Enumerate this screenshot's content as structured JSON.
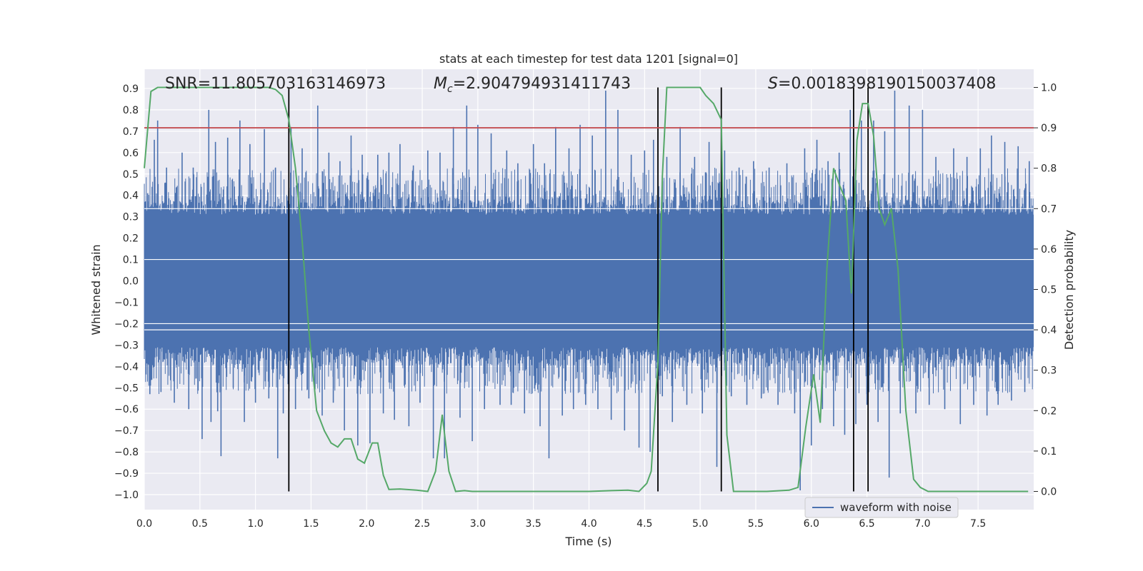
{
  "chart_data": {
    "type": "line",
    "title": "stats at each timestep for test data 1201 [signal=0]",
    "xlabel": "Time (s)",
    "ylabel_left": "Whitened strain",
    "ylabel_right": "Detection probability",
    "xlim": [
      0.0,
      8.0
    ],
    "ylim_left": [
      -1.07,
      0.99
    ],
    "ylim_right": [
      -0.045,
      1.045
    ],
    "x_ticks": [
      0.0,
      0.5,
      1.0,
      1.5,
      2.0,
      2.5,
      3.0,
      3.5,
      4.0,
      4.5,
      5.0,
      5.5,
      6.0,
      6.5,
      7.0,
      7.5
    ],
    "x_tick_labels": [
      "0.0",
      "0.5",
      "1.0",
      "1.5",
      "2.0",
      "2.5",
      "3.0",
      "3.5",
      "4.0",
      "4.5",
      "5.0",
      "5.5",
      "6.0",
      "6.5",
      "7.0",
      "7.5"
    ],
    "y_left_ticks": [
      0.9,
      0.8,
      0.7,
      0.6,
      0.5,
      0.4,
      0.3,
      0.2,
      0.1,
      0.0,
      -0.1,
      -0.2,
      -0.3,
      -0.4,
      -0.5,
      -0.6,
      -0.7,
      -0.8,
      -0.9,
      -1.0
    ],
    "y_left_tick_labels": [
      "0.9",
      "0.8",
      "0.7",
      "0.6",
      "0.5",
      "0.4",
      "0.3",
      "0.2",
      "0.1",
      "0.0",
      "−0.1",
      "−0.2",
      "−0.3",
      "−0.4",
      "−0.5",
      "−0.6",
      "−0.7",
      "−0.8",
      "−0.9",
      "−1.0"
    ],
    "y_right_ticks": [
      1.0,
      0.9,
      0.8,
      0.7,
      0.6,
      0.5,
      0.4,
      0.3,
      0.2,
      0.1,
      0.0
    ],
    "y_right_tick_labels": [
      "1.0",
      "0.9",
      "0.8",
      "0.7",
      "0.6",
      "0.5",
      "0.4",
      "0.3",
      "0.2",
      "0.1",
      "0.0"
    ],
    "annotations": {
      "snr": "SNR=11.805703163146973",
      "mc_symbol": "M",
      "mc_subscript": "c",
      "mc_value": "=2.904794931411743",
      "s_symbol": "S",
      "s_value": "=0.0018398190150037408"
    },
    "threshold": {
      "value": 0.9,
      "axis": "right",
      "color": "#c44e52"
    },
    "vertical_lines_x": [
      1.3,
      4.62,
      5.19,
      6.38,
      6.51
    ],
    "waveform": {
      "name": "waveform with noise",
      "color": "#4c72b0",
      "x_range": [
        0.0,
        8.0
      ],
      "description": "dense noise",
      "body_amplitude": 0.31,
      "spikes": [
        {
          "x": 0.03,
          "y": 0.41
        },
        {
          "x": 0.05,
          "y": -0.53
        },
        {
          "x": 0.09,
          "y": 0.66
        },
        {
          "x": 0.12,
          "y": 0.75
        },
        {
          "x": 0.15,
          "y": -0.52
        },
        {
          "x": 0.2,
          "y": 0.53
        },
        {
          "x": 0.27,
          "y": -0.57
        },
        {
          "x": 0.34,
          "y": 0.6
        },
        {
          "x": 0.4,
          "y": -0.6
        },
        {
          "x": 0.44,
          "y": 0.53
        },
        {
          "x": 0.52,
          "y": -0.74
        },
        {
          "x": 0.58,
          "y": 0.8
        },
        {
          "x": 0.6,
          "y": -0.66
        },
        {
          "x": 0.64,
          "y": 0.65
        },
        {
          "x": 0.66,
          "y": -0.61
        },
        {
          "x": 0.69,
          "y": -0.82
        },
        {
          "x": 0.75,
          "y": 0.67
        },
        {
          "x": 0.8,
          "y": -0.5
        },
        {
          "x": 0.86,
          "y": 0.75
        },
        {
          "x": 0.9,
          "y": -0.66
        },
        {
          "x": 0.95,
          "y": 0.64
        },
        {
          "x": 1.0,
          "y": -0.57
        },
        {
          "x": 1.08,
          "y": 0.71
        },
        {
          "x": 1.12,
          "y": -0.55
        },
        {
          "x": 1.18,
          "y": 0.53
        },
        {
          "x": 1.2,
          "y": -0.83
        },
        {
          "x": 1.25,
          "y": -0.62
        },
        {
          "x": 1.32,
          "y": 0.72
        },
        {
          "x": 1.36,
          "y": -0.6
        },
        {
          "x": 1.42,
          "y": 0.62
        },
        {
          "x": 1.48,
          "y": -0.55
        },
        {
          "x": 1.56,
          "y": 0.82
        },
        {
          "x": 1.6,
          "y": -0.63
        },
        {
          "x": 1.66,
          "y": 0.6
        },
        {
          "x": 1.7,
          "y": -0.57
        },
        {
          "x": 1.76,
          "y": 0.56
        },
        {
          "x": 1.8,
          "y": -0.7
        },
        {
          "x": 1.86,
          "y": 0.68
        },
        {
          "x": 1.92,
          "y": -0.77
        },
        {
          "x": 1.96,
          "y": 0.59
        },
        {
          "x": 2.03,
          "y": -0.76
        },
        {
          "x": 2.1,
          "y": 0.59
        },
        {
          "x": 2.15,
          "y": -0.62
        },
        {
          "x": 2.2,
          "y": 0.6
        },
        {
          "x": 2.25,
          "y": -0.65
        },
        {
          "x": 2.3,
          "y": 0.64
        },
        {
          "x": 2.38,
          "y": -0.68
        },
        {
          "x": 2.42,
          "y": 0.54
        },
        {
          "x": 2.48,
          "y": -0.57
        },
        {
          "x": 2.55,
          "y": 0.61
        },
        {
          "x": 2.6,
          "y": -0.83
        },
        {
          "x": 2.66,
          "y": 0.6
        },
        {
          "x": 2.7,
          "y": -0.83
        },
        {
          "x": 2.78,
          "y": 0.72
        },
        {
          "x": 2.84,
          "y": -0.64
        },
        {
          "x": 2.9,
          "y": 0.82
        },
        {
          "x": 2.95,
          "y": -0.75
        },
        {
          "x": 3.0,
          "y": 0.73
        },
        {
          "x": 3.06,
          "y": -0.6
        },
        {
          "x": 3.12,
          "y": 0.69
        },
        {
          "x": 3.2,
          "y": -0.58
        },
        {
          "x": 3.26,
          "y": 0.61
        },
        {
          "x": 3.3,
          "y": -0.58
        },
        {
          "x": 3.36,
          "y": 0.55
        },
        {
          "x": 3.42,
          "y": -0.62
        },
        {
          "x": 3.5,
          "y": 0.64
        },
        {
          "x": 3.56,
          "y": -0.68
        },
        {
          "x": 3.6,
          "y": 0.55
        },
        {
          "x": 3.64,
          "y": -0.83
        },
        {
          "x": 3.7,
          "y": 0.72
        },
        {
          "x": 3.76,
          "y": -0.63
        },
        {
          "x": 3.82,
          "y": 0.62
        },
        {
          "x": 3.86,
          "y": -0.6
        },
        {
          "x": 3.92,
          "y": 0.73
        },
        {
          "x": 3.97,
          "y": -0.58
        },
        {
          "x": 4.03,
          "y": 0.68
        },
        {
          "x": 4.08,
          "y": -0.6
        },
        {
          "x": 4.15,
          "y": 0.89
        },
        {
          "x": 4.2,
          "y": -0.65
        },
        {
          "x": 4.26,
          "y": 0.8
        },
        {
          "x": 4.32,
          "y": -0.7
        },
        {
          "x": 4.38,
          "y": 0.59
        },
        {
          "x": 4.45,
          "y": -0.78
        },
        {
          "x": 4.5,
          "y": 0.61
        },
        {
          "x": 4.55,
          "y": -0.8
        },
        {
          "x": 4.58,
          "y": 0.66
        },
        {
          "x": 4.66,
          "y": -0.54
        },
        {
          "x": 4.7,
          "y": 0.58
        },
        {
          "x": 4.75,
          "y": -0.66
        },
        {
          "x": 4.82,
          "y": 0.72
        },
        {
          "x": 4.88,
          "y": -0.58
        },
        {
          "x": 4.95,
          "y": 0.58
        },
        {
          "x": 5.02,
          "y": -0.62
        },
        {
          "x": 5.08,
          "y": 0.65
        },
        {
          "x": 5.15,
          "y": -0.87
        },
        {
          "x": 5.22,
          "y": 0.61
        },
        {
          "x": 5.28,
          "y": -0.54
        },
        {
          "x": 5.35,
          "y": 0.53
        },
        {
          "x": 5.42,
          "y": -0.58
        },
        {
          "x": 5.48,
          "y": 0.56
        },
        {
          "x": 5.55,
          "y": -0.55
        },
        {
          "x": 5.62,
          "y": 0.53
        },
        {
          "x": 5.7,
          "y": -0.58
        },
        {
          "x": 5.78,
          "y": 0.55
        },
        {
          "x": 5.85,
          "y": -0.62
        },
        {
          "x": 5.9,
          "y": -0.98
        },
        {
          "x": 5.94,
          "y": 0.62
        },
        {
          "x": 6.0,
          "y": -0.77
        },
        {
          "x": 6.05,
          "y": 0.66
        },
        {
          "x": 6.1,
          "y": -0.6
        },
        {
          "x": 6.15,
          "y": 0.56
        },
        {
          "x": 6.2,
          "y": -0.68
        },
        {
          "x": 6.25,
          "y": 0.6
        },
        {
          "x": 6.3,
          "y": -0.72
        },
        {
          "x": 6.35,
          "y": 0.8
        },
        {
          "x": 6.4,
          "y": -0.67
        },
        {
          "x": 6.45,
          "y": 0.75
        },
        {
          "x": 6.5,
          "y": -0.58
        },
        {
          "x": 6.56,
          "y": 0.75
        },
        {
          "x": 6.6,
          "y": -0.66
        },
        {
          "x": 6.66,
          "y": 0.7
        },
        {
          "x": 6.7,
          "y": -0.92
        },
        {
          "x": 6.75,
          "y": 0.89
        },
        {
          "x": 6.8,
          "y": -0.62
        },
        {
          "x": 6.88,
          "y": 0.82
        },
        {
          "x": 6.94,
          "y": -0.62
        },
        {
          "x": 7.0,
          "y": 0.8
        },
        {
          "x": 7.06,
          "y": -0.58
        },
        {
          "x": 7.12,
          "y": 0.58
        },
        {
          "x": 7.2,
          "y": -0.6
        },
        {
          "x": 7.28,
          "y": 0.62
        },
        {
          "x": 7.34,
          "y": -0.67
        },
        {
          "x": 7.4,
          "y": 0.58
        },
        {
          "x": 7.46,
          "y": -0.58
        },
        {
          "x": 7.52,
          "y": 0.62
        },
        {
          "x": 7.58,
          "y": -0.63
        },
        {
          "x": 7.62,
          "y": 0.68
        },
        {
          "x": 7.68,
          "y": -0.58
        },
        {
          "x": 7.74,
          "y": 0.65
        },
        {
          "x": 7.8,
          "y": -0.56
        },
        {
          "x": 7.86,
          "y": 0.63
        },
        {
          "x": 7.92,
          "y": -0.52
        },
        {
          "x": 7.96,
          "y": 0.56
        }
      ]
    },
    "detection_probability": {
      "color": "#55a868",
      "axis": "right",
      "x": [
        0.0,
        0.06,
        0.12,
        0.2,
        0.4,
        0.6,
        0.8,
        1.0,
        1.12,
        1.18,
        1.24,
        1.3,
        1.36,
        1.42,
        1.48,
        1.55,
        1.62,
        1.68,
        1.74,
        1.8,
        1.86,
        1.92,
        1.98,
        2.05,
        2.1,
        2.15,
        2.2,
        2.3,
        2.45,
        2.55,
        2.62,
        2.68,
        2.74,
        2.8,
        2.88,
        2.95,
        3.05,
        3.2,
        3.5,
        3.8,
        4.0,
        4.2,
        4.35,
        4.45,
        4.52,
        4.56,
        4.62,
        4.66,
        4.7,
        4.8,
        5.0,
        5.05,
        5.12,
        5.19,
        5.24,
        5.3,
        5.4,
        5.6,
        5.8,
        5.88,
        5.95,
        6.02,
        6.08,
        6.14,
        6.2,
        6.25,
        6.31,
        6.36,
        6.41,
        6.46,
        6.51,
        6.56,
        6.61,
        6.66,
        6.72,
        6.78,
        6.85,
        6.92,
        6.98,
        7.05,
        7.15,
        7.5,
        7.95
      ],
      "y": [
        0.8,
        0.99,
        1.0,
        1.0,
        1.0,
        1.0,
        1.0,
        1.0,
        1.0,
        0.995,
        0.98,
        0.92,
        0.8,
        0.62,
        0.4,
        0.2,
        0.15,
        0.12,
        0.11,
        0.13,
        0.13,
        0.08,
        0.07,
        0.12,
        0.12,
        0.04,
        0.005,
        0.006,
        0.003,
        0.0,
        0.05,
        0.19,
        0.05,
        0.0,
        0.002,
        0.0,
        0.0,
        0.0,
        0.0,
        0.0,
        0.0,
        0.002,
        0.003,
        0.0,
        0.02,
        0.05,
        0.32,
        0.78,
        1.0,
        1.0,
        1.0,
        0.98,
        0.96,
        0.92,
        0.14,
        0.0,
        0.0,
        0.0,
        0.003,
        0.01,
        0.16,
        0.29,
        0.17,
        0.55,
        0.8,
        0.76,
        0.72,
        0.49,
        0.87,
        0.96,
        0.96,
        0.88,
        0.7,
        0.66,
        0.7,
        0.55,
        0.2,
        0.03,
        0.01,
        0.0,
        0.0,
        0.0,
        0.0
      ]
    },
    "legend": {
      "label": "waveform with noise",
      "placement": "lower-right"
    }
  }
}
